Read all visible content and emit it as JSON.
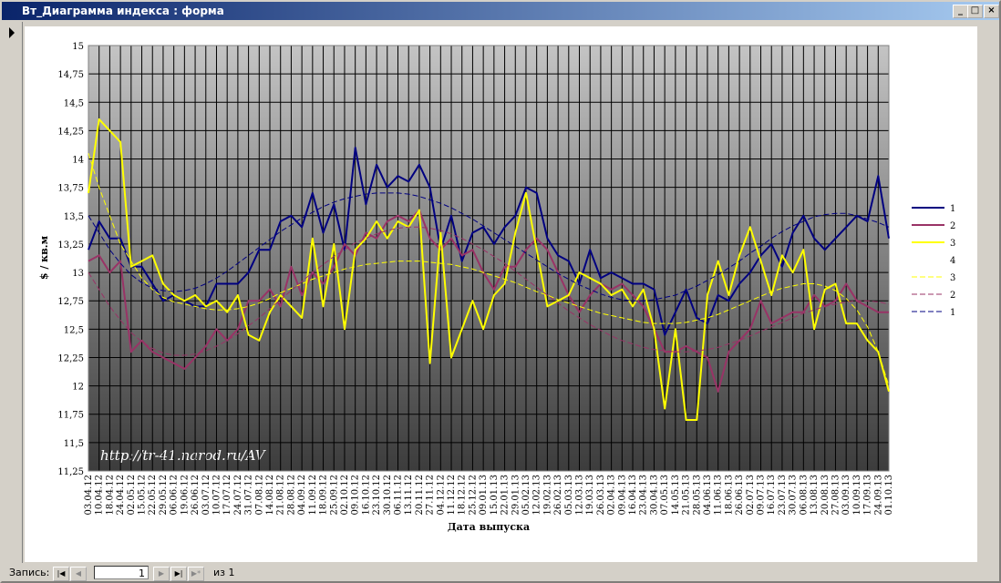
{
  "window": {
    "title": "Вт_Диаграмма индекса : форма"
  },
  "nav": {
    "label": "Запись:",
    "record": "1",
    "of": "из 1"
  },
  "chart_data": {
    "type": "line",
    "watermark": "http://tr-41.narod.ru/AV",
    "y_label": "$ / кв.м",
    "x_label": "Дата выпуска",
    "grid": true,
    "legend": "right",
    "ylim": [
      11.25,
      15
    ],
    "yticks": [
      {
        "value": 11.25,
        "label": "11,25"
      },
      {
        "value": 11.5,
        "label": "11,5"
      },
      {
        "value": 11.75,
        "label": "11,75"
      },
      12,
      {
        "value": 12.25,
        "label": "12,25"
      },
      {
        "value": 12.5,
        "label": "12,5"
      },
      {
        "value": 12.75,
        "label": "12,75"
      },
      13,
      {
        "value": 13.25,
        "label": "13,25"
      },
      {
        "value": 13.5,
        "label": "13,5"
      },
      {
        "value": 13.75,
        "label": "13,75"
      },
      14,
      {
        "value": 14.25,
        "label": "14,25"
      },
      {
        "value": 14.5,
        "label": "14,5"
      },
      {
        "value": 14.75,
        "label": "14,75"
      },
      15
    ],
    "categories": [
      "03.04.12",
      "10.04.12",
      "18.04.12",
      "24.04.12",
      "02.05.12",
      "15.05.12",
      "22.05.12",
      "29.05.12",
      "06.06.12",
      "19.06.12",
      "26.06.12",
      "03.07.12",
      "10.07.12",
      "17.07.12",
      "24.07.12",
      "31.07.12",
      "07.08.12",
      "14.08.12",
      "21.08.12",
      "28.08.12",
      "04.09.12",
      "11.09.12",
      "18.09.12",
      "25.09.12",
      "02.10.12",
      "09.10.12",
      "16.10.12",
      "23.10.12",
      "30.10.12",
      "06.11.12",
      "13.11.12",
      "20.11.12",
      "27.11.12",
      "04.12.12",
      "11.12.12",
      "18.12.12",
      "25.12.12",
      "09.01.13",
      "15.01.13",
      "22.01.13",
      "29.01.13",
      "05.02.13",
      "12.02.13",
      "19.02.13",
      "26.02.13",
      "05.03.13",
      "12.03.13",
      "19.03.13",
      "26.03.13",
      "02.04.13",
      "09.04.13",
      "16.04.13",
      "23.04.13",
      "30.04.13",
      "07.05.13",
      "14.05.13",
      "21.05.13",
      "28.05.13",
      "04.06.13",
      "11.06.13",
      "18.06.13",
      "26.06.13",
      "02.07.13",
      "09.07.13",
      "16.07.13",
      "23.07.13",
      "30.07.13",
      "06.08.13",
      "13.08.13",
      "20.08.13",
      "27.08.13",
      "03.09.13",
      "10.09.13",
      "17.09.13",
      "24.09.13",
      "01.10.13"
    ],
    "series": [
      {
        "name": "1",
        "color": "#000080",
        "values": [
          13.2,
          13.45,
          13.3,
          13.3,
          13.05,
          13.05,
          12.9,
          12.75,
          12.8,
          12.75,
          12.7,
          12.7,
          12.9,
          12.9,
          12.9,
          13.0,
          13.2,
          13.2,
          13.45,
          13.5,
          13.4,
          13.7,
          13.35,
          13.6,
          13.2,
          14.1,
          13.6,
          13.95,
          13.75,
          13.85,
          13.8,
          13.95,
          13.75,
          13.2,
          13.5,
          13.1,
          13.35,
          13.4,
          13.25,
          13.4,
          13.5,
          13.75,
          13.7,
          13.3,
          13.15,
          13.1,
          12.9,
          13.2,
          12.95,
          13.0,
          12.95,
          12.9,
          12.9,
          12.85,
          12.45,
          12.65,
          12.85,
          12.6,
          12.55,
          12.8,
          12.75,
          12.9,
          13.0,
          13.15,
          13.25,
          13.05,
          13.35,
          13.5,
          13.3,
          13.2,
          13.3,
          13.4,
          13.5,
          13.45,
          13.85,
          13.3
        ]
      },
      {
        "name": "2",
        "color": "#993366",
        "values": [
          13.1,
          13.15,
          13.0,
          13.1,
          12.3,
          12.4,
          12.3,
          12.25,
          12.2,
          12.15,
          12.25,
          12.35,
          12.5,
          12.4,
          12.5,
          12.75,
          12.75,
          12.85,
          12.7,
          13.05,
          12.8,
          13.0,
          12.9,
          13.05,
          13.25,
          13.15,
          13.35,
          13.3,
          13.45,
          13.5,
          13.45,
          13.55,
          13.3,
          13.2,
          13.3,
          13.15,
          13.2,
          13.0,
          12.85,
          13.05,
          13.05,
          13.2,
          13.3,
          13.2,
          13.0,
          12.8,
          12.65,
          12.8,
          12.9,
          12.85,
          12.9,
          12.8,
          12.7,
          12.5,
          12.3,
          12.3,
          12.35,
          12.3,
          12.25,
          11.95,
          12.3,
          12.4,
          12.5,
          12.75,
          12.55,
          12.6,
          12.65,
          12.65,
          12.8,
          12.7,
          12.75,
          12.9,
          12.75,
          12.7,
          12.65,
          12.65
        ]
      },
      {
        "name": "3",
        "color": "#ffff00",
        "values": [
          13.7,
          14.35,
          14.25,
          14.15,
          13.05,
          13.1,
          13.15,
          12.9,
          12.8,
          12.75,
          12.8,
          12.7,
          12.75,
          12.65,
          12.8,
          12.45,
          12.4,
          12.65,
          12.8,
          12.7,
          12.6,
          13.3,
          12.7,
          13.25,
          12.5,
          13.2,
          13.3,
          13.45,
          13.3,
          13.45,
          13.4,
          13.55,
          12.2,
          13.35,
          12.25,
          12.5,
          12.75,
          12.5,
          12.8,
          12.9,
          13.35,
          13.7,
          13.2,
          12.7,
          12.75,
          12.8,
          13.0,
          12.95,
          12.9,
          12.8,
          12.85,
          12.7,
          12.85,
          12.5,
          11.8,
          12.5,
          11.7,
          11.7,
          12.8,
          13.1,
          12.8,
          13.15,
          13.4,
          13.1,
          12.8,
          13.15,
          13.0,
          13.2,
          12.5,
          12.85,
          12.9,
          12.55,
          12.55,
          12.4,
          12.3,
          11.95
        ]
      },
      {
        "name": "4"
      },
      {
        "name": "3",
        "color": "#ffff00",
        "dash": true,
        "values": [
          14.05,
          13.75,
          13.5,
          13.25,
          13.1,
          12.95,
          12.85,
          12.78,
          12.74,
          12.72,
          12.7,
          12.68,
          12.67,
          12.67,
          12.68,
          12.7,
          12.73,
          12.77,
          12.82,
          12.86,
          12.9,
          12.94,
          12.97,
          13.0,
          13.03,
          13.05,
          13.07,
          13.08,
          13.09,
          13.1,
          13.1,
          13.1,
          13.09,
          13.08,
          13.07,
          13.05,
          13.03,
          13.0,
          12.97,
          12.94,
          12.91,
          12.87,
          12.83,
          12.8,
          12.76,
          12.73,
          12.7,
          12.67,
          12.64,
          12.62,
          12.6,
          12.58,
          12.56,
          12.55,
          12.55,
          12.55,
          12.56,
          12.58,
          12.6,
          12.63,
          12.67,
          12.71,
          12.75,
          12.79,
          12.83,
          12.86,
          12.88,
          12.9,
          12.9,
          12.88,
          12.84,
          12.77,
          12.67,
          12.52,
          12.3,
          12.0
        ]
      },
      {
        "name": "2",
        "color": "#993366",
        "dash": true,
        "values": [
          13.0,
          12.85,
          12.7,
          12.58,
          12.47,
          12.39,
          12.33,
          12.29,
          12.27,
          12.27,
          12.28,
          12.31,
          12.35,
          12.4,
          12.46,
          12.53,
          12.6,
          12.68,
          12.76,
          12.84,
          12.92,
          13.0,
          13.07,
          13.14,
          13.2,
          13.26,
          13.3,
          13.34,
          13.37,
          13.39,
          13.4,
          13.4,
          13.39,
          13.37,
          13.34,
          13.3,
          13.25,
          13.2,
          13.14,
          13.08,
          13.01,
          12.94,
          12.87,
          12.8,
          12.73,
          12.66,
          12.6,
          12.54,
          12.49,
          12.44,
          12.4,
          12.37,
          12.34,
          12.32,
          12.31,
          12.3,
          12.3,
          12.31,
          12.32,
          12.34,
          12.37,
          12.4,
          12.44,
          12.48,
          12.52,
          12.56,
          12.6,
          12.64,
          12.67,
          12.7,
          12.72,
          12.74,
          12.75,
          12.75,
          12.74,
          12.72
        ]
      },
      {
        "name": "1",
        "color": "#000080",
        "dash": true,
        "values": [
          13.5,
          13.35,
          13.2,
          13.08,
          12.98,
          12.91,
          12.86,
          12.84,
          12.83,
          12.84,
          12.86,
          12.9,
          12.95,
          13.01,
          13.08,
          13.15,
          13.22,
          13.29,
          13.36,
          13.42,
          13.48,
          13.53,
          13.58,
          13.62,
          13.65,
          13.67,
          13.69,
          13.7,
          13.7,
          13.7,
          13.69,
          13.67,
          13.64,
          13.61,
          13.57,
          13.52,
          13.47,
          13.41,
          13.35,
          13.29,
          13.23,
          13.17,
          13.11,
          13.05,
          12.99,
          12.94,
          12.89,
          12.85,
          12.81,
          12.78,
          12.76,
          12.75,
          12.75,
          12.76,
          12.78,
          12.8,
          12.84,
          12.88,
          12.93,
          12.98,
          13.04,
          13.1,
          13.17,
          13.23,
          13.3,
          13.36,
          13.41,
          13.45,
          13.49,
          13.51,
          13.52,
          13.52,
          13.5,
          13.47,
          13.44,
          13.4
        ]
      }
    ]
  }
}
